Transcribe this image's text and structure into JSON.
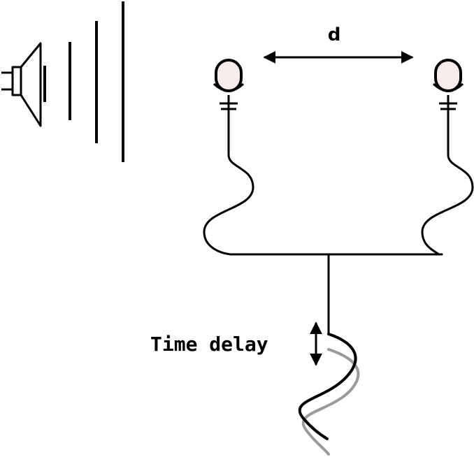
{
  "diagram": {
    "distance_label": "d",
    "delay_label": "Time delay",
    "colors": {
      "line": "#000000",
      "delayed_wave": "#9a9a9a",
      "mic_capsule": "#f8ecec"
    },
    "icons": {
      "source": "loudspeaker-icon",
      "microphone": "microphone-icon"
    }
  }
}
